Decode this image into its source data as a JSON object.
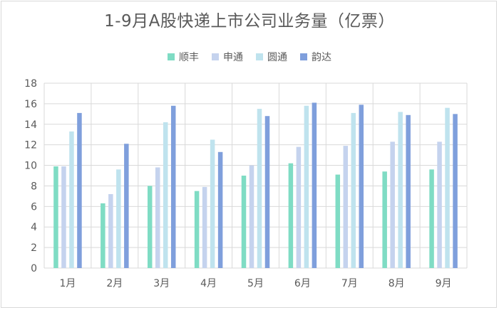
{
  "chart_data": {
    "type": "bar",
    "title": "1-9月A股快递上市公司业务量（亿票）",
    "categories": [
      "1月",
      "2月",
      "3月",
      "4月",
      "5月",
      "6月",
      "7月",
      "8月",
      "9月"
    ],
    "ylim": [
      0,
      18
    ],
    "yticks": [
      0,
      2,
      4,
      6,
      8,
      10,
      12,
      14,
      16,
      18
    ],
    "grid": true,
    "legend_position": "top",
    "series": [
      {
        "name": "顺丰",
        "color": "#7fdcc4",
        "values": [
          9.9,
          6.3,
          8.0,
          7.5,
          9.0,
          10.2,
          9.1,
          9.4,
          9.6
        ]
      },
      {
        "name": "申通",
        "color": "#c5d3ee",
        "values": [
          9.9,
          7.2,
          9.8,
          7.9,
          10.0,
          11.8,
          11.9,
          12.3,
          12.3
        ]
      },
      {
        "name": "圆通",
        "color": "#bfe3ee",
        "values": [
          13.3,
          9.6,
          14.2,
          12.5,
          15.5,
          15.8,
          15.1,
          15.2,
          15.6
        ]
      },
      {
        "name": "韵达",
        "color": "#7f9fdc",
        "values": [
          15.1,
          12.1,
          15.8,
          11.3,
          14.8,
          16.1,
          15.9,
          14.9,
          15.0
        ]
      }
    ]
  }
}
